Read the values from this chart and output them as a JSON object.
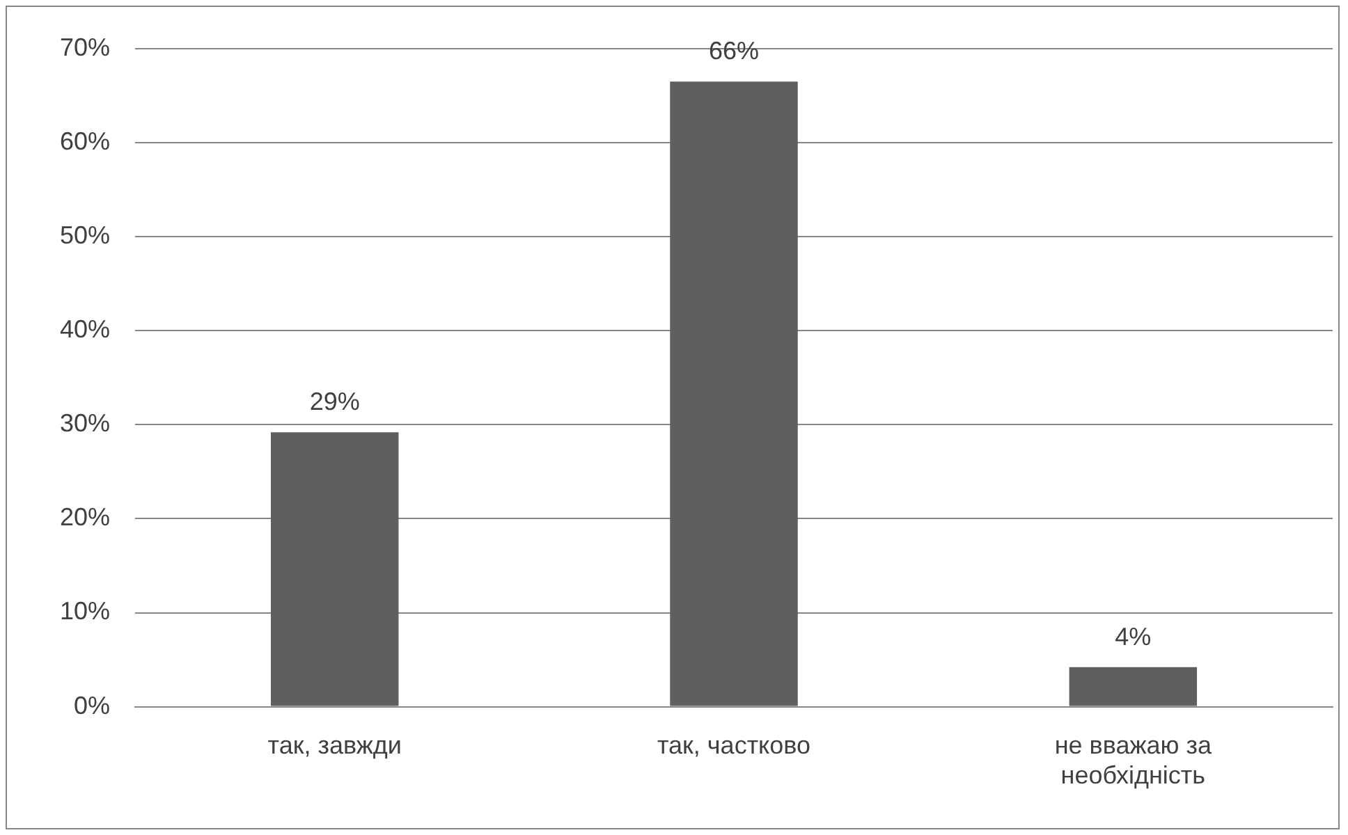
{
  "chart_data": {
    "type": "bar",
    "categories": [
      "так, завжди",
      "так, частково",
      "не вважаю за необхідність"
    ],
    "values": [
      29.2,
      66.5,
      4.2
    ],
    "value_labels": [
      "29%",
      "66%",
      "4%"
    ],
    "color": "#5f5f5f",
    "ylim": [
      0,
      70
    ],
    "yticks": [
      {
        "value": 0,
        "label": "0%"
      },
      {
        "value": 10,
        "label": "10%"
      },
      {
        "value": 20,
        "label": "20%"
      },
      {
        "value": 30,
        "label": "30%"
      },
      {
        "value": 40,
        "label": "40%"
      },
      {
        "value": 50,
        "label": "50%"
      },
      {
        "value": 60,
        "label": "60%"
      },
      {
        "value": 70,
        "label": "70%"
      }
    ],
    "grid": "y",
    "legend": false
  }
}
